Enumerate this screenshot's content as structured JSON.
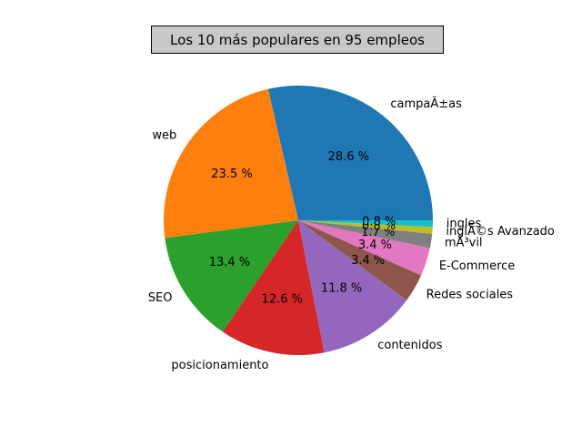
{
  "chart_data": {
    "type": "pie",
    "title": "Los 10 más populares en 95 empleos",
    "start_angle_deg": 0,
    "direction": "counterclockwise",
    "slices": [
      {
        "label": "campaÃ±as",
        "pct": 28.6,
        "pct_label": "28.6 %",
        "color": "#1f77b4"
      },
      {
        "label": "web",
        "pct": 23.5,
        "pct_label": "23.5 %",
        "color": "#ff7f0e"
      },
      {
        "label": "SEO",
        "pct": 13.4,
        "pct_label": "13.4 %",
        "color": "#2ca02c"
      },
      {
        "label": "posicionamiento",
        "pct": 12.6,
        "pct_label": "12.6 %",
        "color": "#d62728"
      },
      {
        "label": "contenidos",
        "pct": 11.8,
        "pct_label": "11.8 %",
        "color": "#9467bd"
      },
      {
        "label": "Redes sociales",
        "pct": 3.4,
        "pct_label": "3.4 %",
        "color": "#8c564b"
      },
      {
        "label": "E-Commerce",
        "pct": 3.4,
        "pct_label": "3.4 %",
        "color": "#e377c2"
      },
      {
        "label": "mÃ³vil",
        "pct": 1.7,
        "pct_label": "1.7 %",
        "color": "#7f7f7f"
      },
      {
        "label": "inglÃ©s Avanzado",
        "pct": 0.8,
        "pct_label": "0.8 %",
        "color": "#bcbd22"
      },
      {
        "label": "ingles",
        "pct": 0.8,
        "pct_label": "0.8 %",
        "color": "#17becf"
      }
    ]
  }
}
